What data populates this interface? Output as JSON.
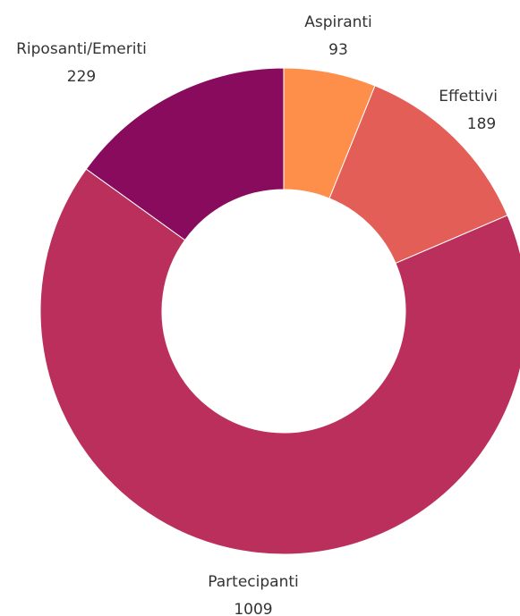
{
  "chart_data": {
    "type": "pie",
    "variant": "donut",
    "title": "",
    "legend": "none",
    "categories": [
      "Aspiranti",
      "Effettivi",
      "Partecipanti",
      "Riposanti/Emeriti"
    ],
    "values": [
      93,
      189,
      1009,
      229
    ],
    "value_labels": [
      "93",
      "189",
      "1009",
      "229"
    ],
    "colors": [
      "#fd8f4b",
      "#e35e57",
      "#bb2f5c",
      "#880b5d"
    ]
  }
}
